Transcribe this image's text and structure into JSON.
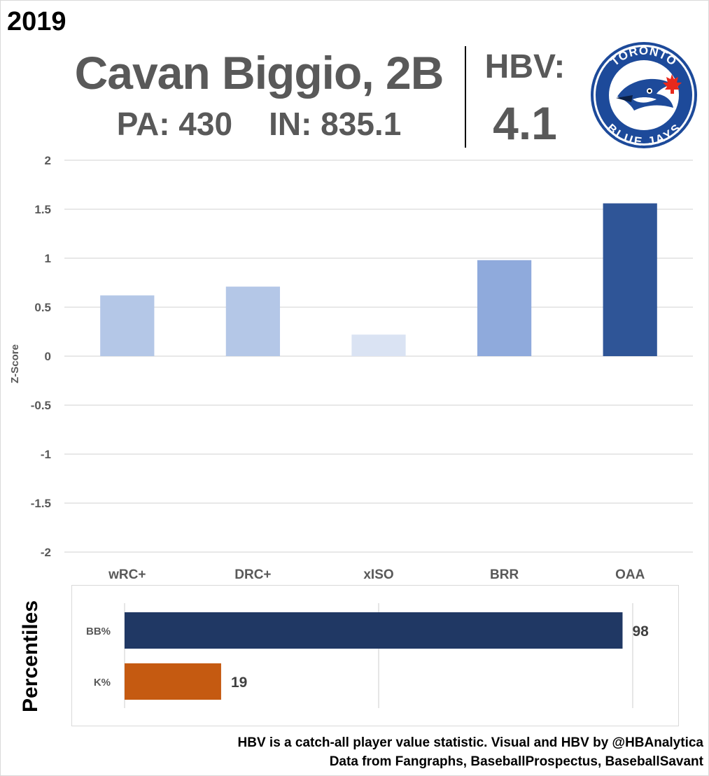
{
  "header": {
    "year": "2019",
    "player": "Cavan Biggio, 2B",
    "pa_label": "PA: 430",
    "in_label": "IN: 835.1",
    "hbv_label": "HBV:",
    "hbv_value": "4.1"
  },
  "logo": {
    "name": "toronto-blue-jays-logo",
    "top_text": "TORONTO",
    "bottom_text": "BLUE JAYS"
  },
  "chart_data": [
    {
      "type": "bar",
      "title": "",
      "xlabel": "",
      "ylabel": "Z-Score",
      "ylim": [
        -2,
        2
      ],
      "yticks": [
        2,
        1.5,
        1,
        0.5,
        0,
        -0.5,
        -1,
        -1.5,
        -2
      ],
      "ytick_labels": [
        "2",
        "1.5",
        "1",
        "0.5",
        "0",
        "-0.5",
        "-1",
        "-1.5",
        "-2"
      ],
      "categories": [
        "wRC+",
        "DRC+",
        "xISO",
        "BRR",
        "OAA"
      ],
      "values": [
        0.62,
        0.71,
        0.22,
        0.98,
        1.56
      ],
      "colors": [
        "#b4c7e7",
        "#b4c7e7",
        "#dae3f3",
        "#8faadc",
        "#2f5597"
      ],
      "grid": true
    },
    {
      "type": "bar",
      "orientation": "horizontal",
      "title": "Percentiles",
      "categories": [
        "BB%",
        "K%"
      ],
      "values": [
        98,
        19
      ],
      "data_labels": [
        "98",
        "19"
      ],
      "colors": [
        "#203864",
        "#c55a11"
      ],
      "xlim": [
        0,
        100
      ],
      "grid": true
    }
  ],
  "footer": {
    "line1": "HBV is a catch-all player value statistic. Visual and HBV by @HBAnalytica",
    "line2": "Data from Fangraphs, BaseballProspectus, BaseballSavant"
  }
}
